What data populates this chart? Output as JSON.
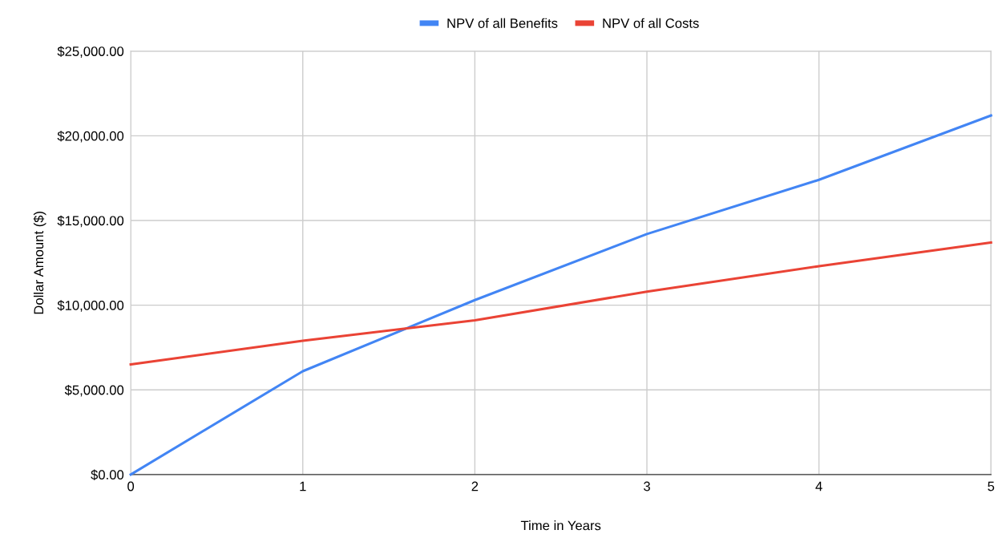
{
  "chart_data": {
    "type": "line",
    "xlabel": "Time in Years",
    "ylabel": "Dollar Amount ($)",
    "x": [
      0,
      1,
      2,
      3,
      4,
      5
    ],
    "series": [
      {
        "name": "NPV of all Benefits",
        "color": "#4285f4",
        "values": [
          0,
          6100,
          10300,
          14200,
          17400,
          21200
        ]
      },
      {
        "name": "NPV of all Costs",
        "color": "#ea4335",
        "values": [
          6500,
          7900,
          9100,
          10800,
          12300,
          13700
        ]
      }
    ],
    "xlim": [
      0,
      5
    ],
    "xticks": [
      0,
      1,
      2,
      3,
      4,
      5
    ],
    "ylim": [
      0,
      25000
    ],
    "yticks": [
      {
        "value": 0,
        "label": "$0.00"
      },
      {
        "value": 5000,
        "label": "$5,000.00"
      },
      {
        "value": 10000,
        "label": "$10,000.00"
      },
      {
        "value": 15000,
        "label": "$15,000.00"
      },
      {
        "value": 20000,
        "label": "$20,000.00"
      },
      {
        "value": 25000,
        "label": "$25,000.00"
      }
    ],
    "grid": true,
    "legend": "top",
    "marker": "none",
    "line_style": "solid"
  }
}
